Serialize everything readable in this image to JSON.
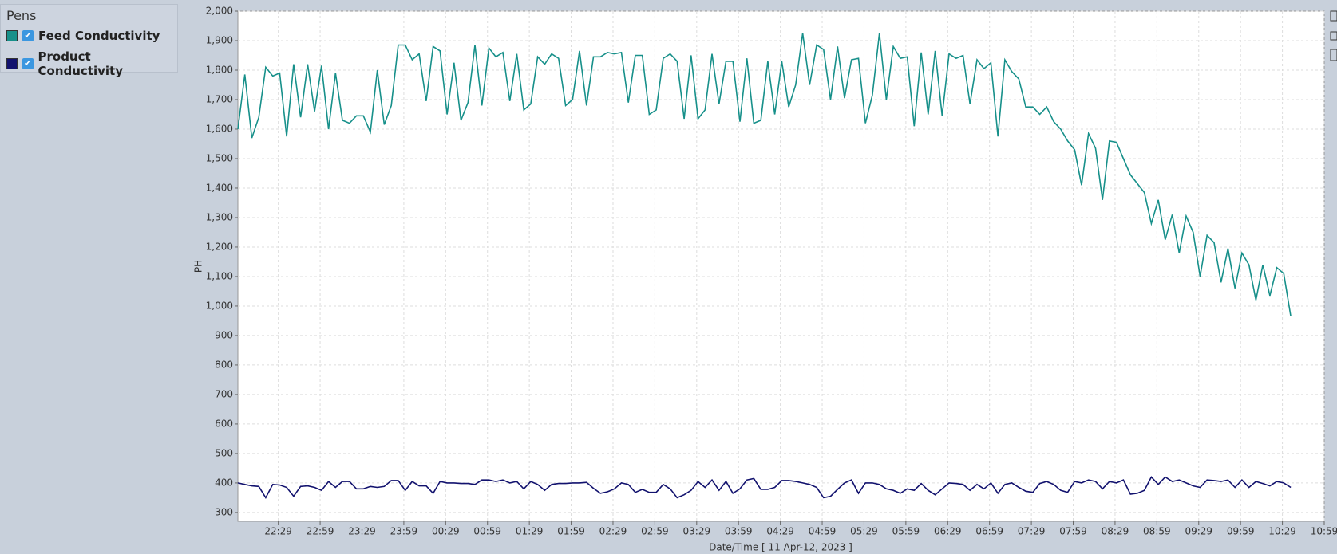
{
  "legend_title": "Pens",
  "chart_data": {
    "type": "line",
    "ylabel": "PH",
    "xlabel": "Date/Time  [ 11 Apr-12, 2023 ]",
    "xlim": [
      "22:00",
      "10:59"
    ],
    "xticks": [
      "22:29",
      "22:59",
      "23:29",
      "23:59",
      "00:29",
      "00:59",
      "01:29",
      "01:59",
      "02:29",
      "02:59",
      "03:29",
      "03:59",
      "04:29",
      "04:59",
      "05:29",
      "05:59",
      "06:29",
      "06:59",
      "07:29",
      "07:59",
      "08:29",
      "08:59",
      "09:29",
      "09:59",
      "10:29",
      "10:59"
    ],
    "ylim": [
      270,
      2000
    ],
    "yticks": [
      300,
      400,
      500,
      600,
      700,
      800,
      900,
      {
        "value": 1000,
        "label": "1,000"
      },
      {
        "value": 1100,
        "label": "1,100"
      },
      {
        "value": 1200,
        "label": "1,200"
      },
      {
        "value": 1300,
        "label": "1,300"
      },
      {
        "value": 1400,
        "label": "1,400"
      },
      {
        "value": 1500,
        "label": "1,500"
      },
      {
        "value": 1600,
        "label": "1,600"
      },
      {
        "value": 1700,
        "label": "1,700"
      },
      {
        "value": 1800,
        "label": "1,800"
      },
      {
        "value": 1900,
        "label": "1,900"
      },
      {
        "value": 2000,
        "label": "2,000"
      }
    ],
    "grid": true,
    "x": [
      "22:00",
      "22:05",
      "22:10",
      "22:15",
      "22:20",
      "22:25",
      "22:30",
      "22:35",
      "22:40",
      "22:45",
      "22:50",
      "22:55",
      "23:00",
      "23:05",
      "23:10",
      "23:15",
      "23:20",
      "23:25",
      "23:30",
      "23:35",
      "23:40",
      "23:45",
      "23:50",
      "23:55",
      "00:00",
      "00:05",
      "00:10",
      "00:15",
      "00:20",
      "00:25",
      "00:30",
      "00:35",
      "00:40",
      "00:45",
      "00:50",
      "00:55",
      "01:00",
      "01:05",
      "01:10",
      "01:15",
      "01:20",
      "01:25",
      "01:30",
      "01:35",
      "01:40",
      "01:45",
      "01:50",
      "01:55",
      "02:00",
      "02:05",
      "02:10",
      "02:15",
      "02:20",
      "02:25",
      "02:30",
      "02:35",
      "02:40",
      "02:45",
      "02:50",
      "02:55",
      "03:00",
      "03:05",
      "03:10",
      "03:15",
      "03:20",
      "03:25",
      "03:30",
      "03:35",
      "03:40",
      "03:45",
      "03:50",
      "03:55",
      "04:00",
      "04:05",
      "04:10",
      "04:15",
      "04:20",
      "04:25",
      "04:30",
      "04:35",
      "04:40",
      "04:45",
      "04:50",
      "04:55",
      "05:00",
      "05:05",
      "05:10",
      "05:15",
      "05:20",
      "05:25",
      "05:30",
      "05:35",
      "05:40",
      "05:45",
      "05:50",
      "05:55",
      "06:00",
      "06:05",
      "06:10",
      "06:15",
      "06:20",
      "06:25",
      "06:30",
      "06:35",
      "06:40",
      "06:45",
      "06:50",
      "06:55",
      "07:00",
      "07:05",
      "07:10",
      "07:15",
      "07:20",
      "07:25",
      "07:30",
      "07:35",
      "07:40",
      "07:45",
      "07:50",
      "07:55",
      "08:00",
      "08:05",
      "08:10",
      "08:15",
      "08:20",
      "08:25",
      "08:30",
      "08:35",
      "08:40",
      "08:45",
      "08:50",
      "08:55",
      "09:00",
      "09:05",
      "09:10",
      "09:15",
      "09:20",
      "09:25",
      "09:30",
      "09:35",
      "09:40",
      "09:45",
      "09:50",
      "09:55",
      "10:00",
      "10:05",
      "10:10",
      "10:15",
      "10:20",
      "10:25",
      "10:30",
      "10:35"
    ],
    "series": [
      {
        "name": "Feed Conductivity",
        "color": "#17908a",
        "values": [
          1600,
          1785,
          1570,
          1640,
          1810,
          1780,
          1790,
          1575,
          1820,
          1640,
          1820,
          1660,
          1815,
          1600,
          1790,
          1630,
          1620,
          1645,
          1645,
          1590,
          1800,
          1615,
          1680,
          1885,
          1885,
          1835,
          1855,
          1695,
          1880,
          1865,
          1650,
          1825,
          1630,
          1690,
          1885,
          1680,
          1875,
          1845,
          1860,
          1695,
          1855,
          1665,
          1685,
          1845,
          1820,
          1855,
          1840,
          1680,
          1700,
          1865,
          1680,
          1845,
          1845,
          1860,
          1855,
          1860,
          1690,
          1850,
          1850,
          1650,
          1665,
          1840,
          1855,
          1830,
          1635,
          1850,
          1635,
          1665,
          1855,
          1685,
          1830,
          1830,
          1625,
          1840,
          1620,
          1630,
          1830,
          1650,
          1830,
          1675,
          1750,
          1925,
          1750,
          1885,
          1870,
          1700,
          1880,
          1705,
          1835,
          1840,
          1620,
          1715,
          1925,
          1700,
          1880,
          1840,
          1845,
          1610,
          1860,
          1650,
          1865,
          1645,
          1855,
          1840,
          1850,
          1685,
          1835,
          1805,
          1825,
          1575,
          1835,
          1795,
          1770,
          1675,
          1675,
          1650,
          1675,
          1625,
          1600,
          1560,
          1530,
          1410,
          1585,
          1535,
          1360,
          1560,
          1555,
          1500,
          1445,
          1415,
          1385,
          1280,
          1360,
          1225,
          1310,
          1180,
          1305,
          1250,
          1100,
          1240,
          1215,
          1080,
          1195,
          1060,
          1180,
          1140,
          1020,
          1140,
          1035,
          1130,
          1110,
          965
        ]
      },
      {
        "name": "Product Conductivity",
        "color": "#12126e",
        "values": [
          400,
          395,
          390,
          388,
          350,
          395,
          393,
          385,
          355,
          388,
          390,
          385,
          375,
          405,
          385,
          405,
          405,
          380,
          380,
          388,
          385,
          388,
          408,
          408,
          375,
          405,
          390,
          390,
          365,
          405,
          400,
          400,
          398,
          398,
          395,
          410,
          410,
          405,
          410,
          400,
          405,
          380,
          405,
          395,
          375,
          395,
          398,
          398,
          400,
          400,
          402,
          382,
          365,
          370,
          380,
          400,
          395,
          368,
          378,
          368,
          368,
          395,
          380,
          350,
          360,
          375,
          405,
          385,
          410,
          375,
          405,
          365,
          380,
          410,
          415,
          378,
          378,
          385,
          408,
          408,
          405,
          400,
          395,
          385,
          350,
          355,
          378,
          400,
          410,
          365,
          400,
          400,
          395,
          380,
          375,
          365,
          380,
          375,
          398,
          375,
          360,
          380,
          400,
          398,
          395,
          375,
          395,
          380,
          400,
          365,
          395,
          400,
          385,
          372,
          368,
          398,
          405,
          395,
          375,
          368,
          405,
          400,
          410,
          405,
          380,
          405,
          400,
          410,
          362,
          365,
          375,
          420,
          395,
          420,
          405,
          410,
          400,
          390,
          385,
          410,
          408,
          405,
          410,
          385,
          410,
          385,
          405,
          398,
          390,
          405,
          400,
          385
        ]
      }
    ]
  }
}
